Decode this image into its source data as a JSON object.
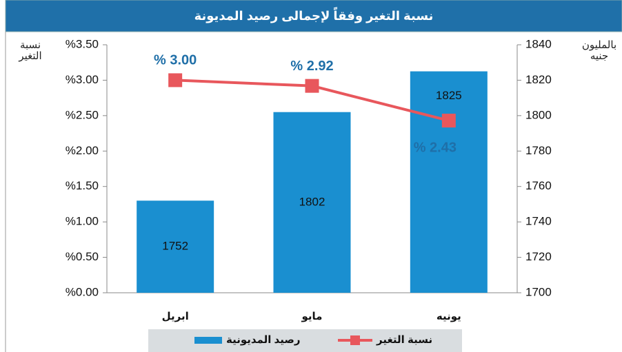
{
  "chart_data": {
    "type": "bar_line",
    "title": "نسبة التغير وفقاً لإجمالى رصيد المديونة",
    "ylabel": "نسبة التغير",
    "y2label": "بالمليون جنيه",
    "categories": [
      "ابريل",
      "مايو",
      "يونيه"
    ],
    "series": [
      {
        "name": "رصيد المديونية",
        "type": "bar",
        "axis": "y2",
        "color": "#1a8fd0",
        "values": [
          1752,
          1802,
          1825
        ]
      },
      {
        "name": "نسبة التغير",
        "type": "line",
        "axis": "y",
        "color": "#e8575c",
        "values": [
          3.0,
          2.92,
          2.43
        ],
        "value_labels": [
          "% 3.00",
          "% 2.92",
          "% 2.43"
        ]
      }
    ],
    "ylim": [
      0,
      3.5
    ],
    "yticks": [
      {
        "value": 0,
        "label": "%0.00"
      },
      {
        "value": 0.5,
        "label": "%0.50"
      },
      {
        "value": 1,
        "label": "%1.00"
      },
      {
        "value": 1.5,
        "label": "%1.50"
      },
      {
        "value": 2,
        "label": "%2.00"
      },
      {
        "value": 2.5,
        "label": "%2.50"
      },
      {
        "value": 3,
        "label": "%3.00"
      },
      {
        "value": 3.5,
        "label": "%3.50"
      }
    ],
    "y2lim": [
      1700,
      1840
    ],
    "y2ticks": [
      1700,
      1720,
      1740,
      1760,
      1780,
      1800,
      1820,
      1840
    ],
    "legend": "bottom"
  }
}
